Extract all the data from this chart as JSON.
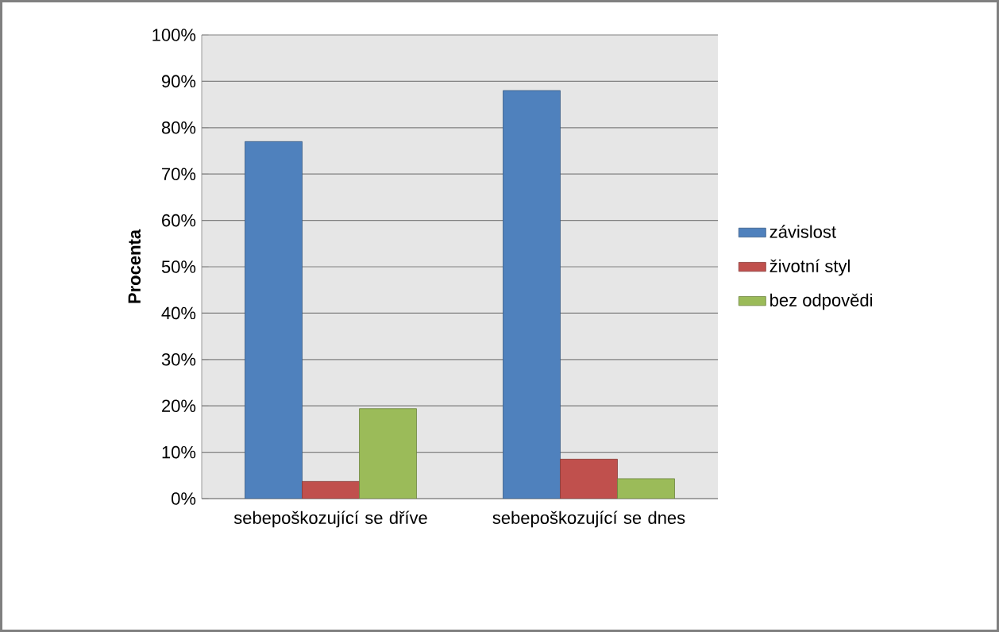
{
  "chart_data": {
    "type": "bar",
    "ylabel": "Procenta",
    "categories": [
      "sebepoškozující se dříve",
      "sebepoškozující se dnes"
    ],
    "series": [
      {
        "name": "závislost",
        "color": "#4f81bd",
        "values": [
          77,
          88
        ]
      },
      {
        "name": "životní styl",
        "color": "#c0504d",
        "values": [
          3.7,
          8.5
        ]
      },
      {
        "name": "bez odpovědi",
        "color": "#9bbb59",
        "values": [
          19.4,
          4.3
        ]
      }
    ],
    "ylim": [
      0,
      100
    ],
    "yticks": [
      {
        "value": 0,
        "label": "0%"
      },
      {
        "value": 10,
        "label": "10%"
      },
      {
        "value": 20,
        "label": "20%"
      },
      {
        "value": 30,
        "label": "30%"
      },
      {
        "value": 40,
        "label": "40%"
      },
      {
        "value": 50,
        "label": "50%"
      },
      {
        "value": 60,
        "label": "60%"
      },
      {
        "value": 70,
        "label": "70%"
      },
      {
        "value": 80,
        "label": "80%"
      },
      {
        "value": 90,
        "label": "90%"
      },
      {
        "value": 100,
        "label": "100%"
      }
    ],
    "grid": "y",
    "legend": "right"
  }
}
